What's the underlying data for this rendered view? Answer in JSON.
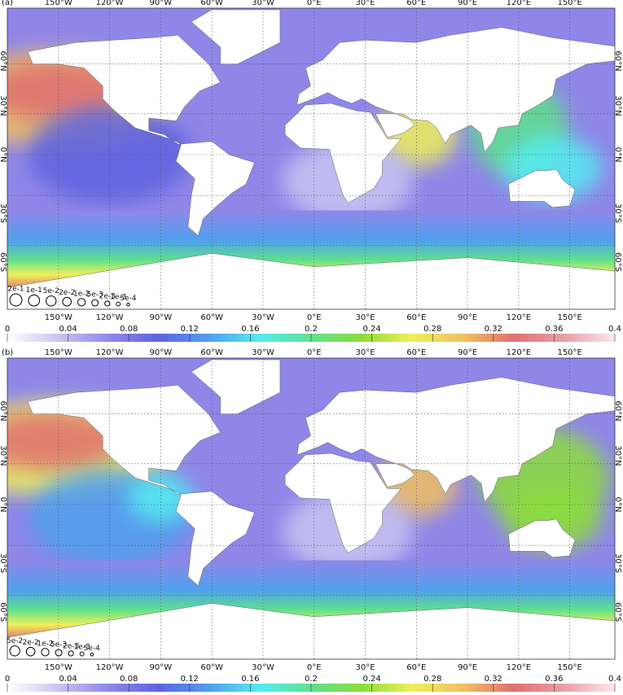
{
  "panels": [
    {
      "label": "(a)",
      "size_legend": [
        {
          "value": 0.2,
          "label": "2e-1"
        },
        {
          "value": 0.1,
          "label": "1e-1"
        },
        {
          "value": 0.05,
          "label": "5e-2"
        },
        {
          "value": 0.02,
          "label": "2e-2"
        },
        {
          "value": 0.01,
          "label": "1e-2"
        },
        {
          "value": 0.005,
          "label": "5e-3"
        },
        {
          "value": 0.002,
          "label": "2e-3"
        },
        {
          "value": 0.001,
          "label": "1e-3"
        },
        {
          "value": 0.0005,
          "label": "5e-4"
        }
      ]
    },
    {
      "label": "(b)",
      "size_legend": [
        {
          "value": 0.05,
          "label": "5e-2"
        },
        {
          "value": 0.02,
          "label": "2e-2"
        },
        {
          "value": 0.01,
          "label": "1e-2"
        },
        {
          "value": 0.005,
          "label": "5e-3"
        },
        {
          "value": 0.002,
          "label": "2e-3"
        },
        {
          "value": 0.001,
          "label": "1e-3"
        },
        {
          "value": 0.0005,
          "label": "5e-4"
        }
      ]
    }
  ],
  "longitude_labels": [
    "150°W",
    "120°W",
    "90°W",
    "60°W",
    "30°W",
    "0°E",
    "30°E",
    "60°E",
    "90°E",
    "120°E",
    "150°E"
  ],
  "latitude_labels": [
    "60°N",
    "30°N",
    "0°N",
    "30°S",
    "60°S"
  ],
  "colorbar": {
    "lim": [
      0,
      0.4
    ],
    "ticks": [
      0,
      0.04,
      0.08,
      0.12,
      0.16,
      0.2,
      0.24,
      0.28,
      0.32,
      0.36,
      0.4
    ],
    "colors": [
      "#ffffff",
      "#c9c4f2",
      "#8f86e8",
      "#5f63e0",
      "#4fa0ee",
      "#55ecf0",
      "#5fe08c",
      "#8cdc3c",
      "#eef05a",
      "#f0c060",
      "#e07070",
      "#e8a0a8",
      "#fbe8ea"
    ]
  }
}
